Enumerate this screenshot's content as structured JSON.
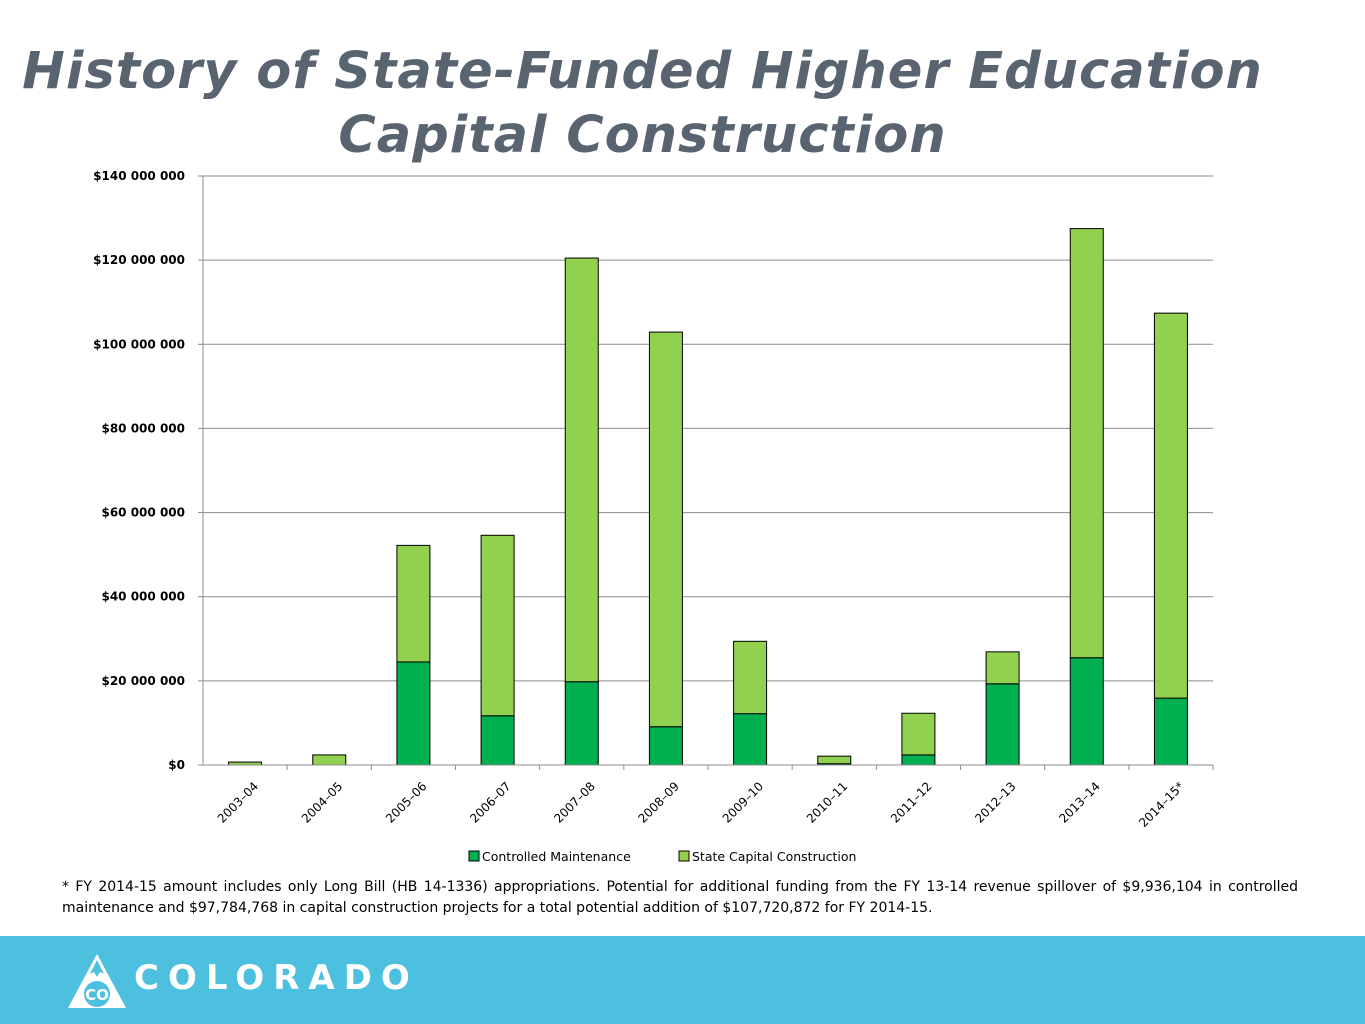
{
  "header": {
    "title_line1": "History of State-Funded Higher Education",
    "title_line2": "Capital Construction"
  },
  "colors": {
    "controlled_maintenance": "#00b050",
    "state_capital_construction": "#92d050",
    "footer_bg": "#4dc0e0",
    "title": "#5a6470"
  },
  "chart_data": {
    "type": "bar",
    "stacked": true,
    "title": "",
    "xlabel": "",
    "ylabel": "",
    "ylim": [
      0,
      140000000
    ],
    "yticks": [
      0,
      20000000,
      40000000,
      60000000,
      80000000,
      100000000,
      120000000,
      140000000
    ],
    "ytick_labels": [
      "$0",
      "$20 000 000",
      "$40 000 000",
      "$60 000 000",
      "$80 000 000",
      "$100 000 000",
      "$120 000 000",
      "$140 000 000"
    ],
    "grid": true,
    "legend_position": "bottom",
    "categories": [
      "2003–04",
      "2004–05",
      "2005–06",
      "2006–07",
      "2007–08",
      "2008–09",
      "2009–10",
      "2010–11",
      "2011–12",
      "2012–13",
      "2013–14",
      "2014–15*"
    ],
    "series": [
      {
        "name": "Controlled Maintenance",
        "color": "#00b050",
        "values": [
          0,
          0,
          24500000,
          11700000,
          19800000,
          9100000,
          12200000,
          300000,
          2400000,
          19300000,
          25500000,
          15900000
        ]
      },
      {
        "name": "State Capital Construction",
        "color": "#92d050",
        "values": [
          700000,
          2400000,
          27700000,
          42900000,
          100700000,
          93800000,
          17200000,
          1800000,
          9900000,
          7600000,
          102000000,
          91500000
        ]
      }
    ]
  },
  "footnote": "* FY 2014-15 amount includes only Long Bill (HB 14-1336) appropriations. Potential for additional funding from the FY 13-14 revenue spillover of $9,936,104 in controlled maintenance and $97,784,768 in capital construction projects for a total potential addition of $107,720,872 for FY 2014-15.",
  "footer": {
    "logo_badge": "CO",
    "logo_text": "COLORADO"
  }
}
